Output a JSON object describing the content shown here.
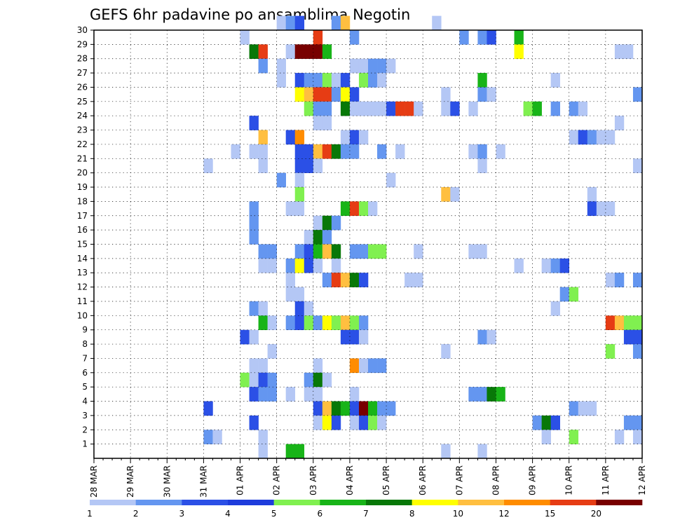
{
  "chart_data": {
    "type": "heatmap",
    "title": "GEFS 6hr padavine po ansamblima Negotin",
    "xlabel": "",
    "ylabel": "",
    "grid": true,
    "x_tick_labels": [
      "28 MAR",
      "29 MAR",
      "30 MAR",
      "31 MAR",
      "01 APR",
      "02 APR",
      "03 APR",
      "04 APR",
      "05 APR",
      "06 APR",
      "07 APR",
      "08 APR",
      "09 APR",
      "10 APR",
      "11 APR",
      "12 APR"
    ],
    "y_tick_labels": [
      "1",
      "2",
      "3",
      "4",
      "5",
      "6",
      "7",
      "8",
      "9",
      "10",
      "11",
      "12",
      "13",
      "14",
      "15",
      "16",
      "17",
      "18",
      "19",
      "20",
      "21",
      "22",
      "23",
      "24",
      "25",
      "26",
      "27",
      "28",
      "29",
      "30"
    ],
    "x_unit": "6-hour step from 28 MAR 00Z",
    "x_range": [
      0,
      60
    ],
    "y_range": [
      0,
      30
    ],
    "legend": {
      "placement": "bottom",
      "levels": [
        "1",
        "2",
        "3",
        "4",
        "5",
        "6",
        "7",
        "8",
        "10",
        "12",
        "15",
        "20"
      ],
      "colors": [
        "#b4c7f5",
        "#6496f0",
        "#2b50e6",
        "#1e3cdc",
        "#80f050",
        "#18b418",
        "#087808",
        "#ffff00",
        "#ffbf40",
        "#ff8c00",
        "#e63c14",
        "#780000"
      ]
    },
    "cells": [
      [
        20,
        30,
        1
      ],
      [
        21,
        30,
        2
      ],
      [
        22,
        30,
        3
      ],
      [
        26,
        30,
        2
      ],
      [
        27,
        30,
        10
      ],
      [
        37,
        30,
        1
      ],
      [
        16,
        29,
        1
      ],
      [
        24,
        29,
        15
      ],
      [
        28,
        29,
        2
      ],
      [
        40,
        29,
        2
      ],
      [
        42,
        29,
        2
      ],
      [
        43,
        29,
        3
      ],
      [
        46,
        29,
        6
      ],
      [
        17,
        28,
        7
      ],
      [
        18,
        28,
        15
      ],
      [
        21,
        28,
        1
      ],
      [
        22,
        28,
        20
      ],
      [
        23,
        28,
        20
      ],
      [
        24,
        28,
        20
      ],
      [
        25,
        28,
        6
      ],
      [
        46,
        28,
        8
      ],
      [
        57,
        28,
        1
      ],
      [
        58,
        28,
        1
      ],
      [
        18,
        27,
        2
      ],
      [
        20,
        27,
        1
      ],
      [
        28,
        27,
        1
      ],
      [
        29,
        27,
        1
      ],
      [
        30,
        27,
        2
      ],
      [
        31,
        27,
        2
      ],
      [
        32,
        27,
        1
      ],
      [
        20,
        26,
        1
      ],
      [
        22,
        26,
        3
      ],
      [
        23,
        26,
        2
      ],
      [
        24,
        26,
        2
      ],
      [
        25,
        26,
        5
      ],
      [
        26,
        26,
        1
      ],
      [
        27,
        26,
        3
      ],
      [
        29,
        26,
        5
      ],
      [
        30,
        26,
        2
      ],
      [
        31,
        26,
        1
      ],
      [
        42,
        26,
        6
      ],
      [
        50,
        26,
        1
      ],
      [
        22,
        25,
        8
      ],
      [
        23,
        25,
        10
      ],
      [
        24,
        25,
        15
      ],
      [
        25,
        25,
        15
      ],
      [
        26,
        25,
        2
      ],
      [
        27,
        25,
        8
      ],
      [
        28,
        25,
        3
      ],
      [
        38,
        25,
        1
      ],
      [
        42,
        25,
        2
      ],
      [
        43,
        25,
        1
      ],
      [
        59,
        25,
        2
      ],
      [
        23,
        24,
        5
      ],
      [
        24,
        24,
        2
      ],
      [
        25,
        24,
        2
      ],
      [
        27,
        24,
        7
      ],
      [
        28,
        24,
        1
      ],
      [
        29,
        24,
        1
      ],
      [
        30,
        24,
        1
      ],
      [
        31,
        24,
        1
      ],
      [
        32,
        24,
        3
      ],
      [
        33,
        24,
        15
      ],
      [
        34,
        24,
        15
      ],
      [
        35,
        24,
        1
      ],
      [
        38,
        24,
        1
      ],
      [
        39,
        24,
        3
      ],
      [
        41,
        24,
        1
      ],
      [
        47,
        24,
        5
      ],
      [
        48,
        24,
        6
      ],
      [
        50,
        24,
        2
      ],
      [
        52,
        24,
        2
      ],
      [
        53,
        24,
        1
      ],
      [
        17,
        23,
        3
      ],
      [
        24,
        23,
        1
      ],
      [
        25,
        23,
        1
      ],
      [
        57,
        23,
        1
      ],
      [
        18,
        22,
        10
      ],
      [
        21,
        22,
        3
      ],
      [
        22,
        22,
        12
      ],
      [
        27,
        22,
        1
      ],
      [
        28,
        22,
        3
      ],
      [
        29,
        22,
        1
      ],
      [
        52,
        22,
        1
      ],
      [
        53,
        22,
        3
      ],
      [
        54,
        22,
        2
      ],
      [
        55,
        22,
        1
      ],
      [
        56,
        22,
        1
      ],
      [
        15,
        21,
        1
      ],
      [
        17,
        21,
        1
      ],
      [
        18,
        21,
        1
      ],
      [
        22,
        21,
        3
      ],
      [
        23,
        21,
        3
      ],
      [
        24,
        21,
        10
      ],
      [
        25,
        21,
        15
      ],
      [
        26,
        21,
        7
      ],
      [
        27,
        21,
        2
      ],
      [
        28,
        21,
        2
      ],
      [
        31,
        21,
        2
      ],
      [
        33,
        21,
        1
      ],
      [
        41,
        21,
        1
      ],
      [
        42,
        21,
        2
      ],
      [
        44,
        21,
        1
      ],
      [
        12,
        20,
        1
      ],
      [
        18,
        20,
        1
      ],
      [
        22,
        20,
        3
      ],
      [
        23,
        20,
        3
      ],
      [
        24,
        20,
        1
      ],
      [
        42,
        20,
        1
      ],
      [
        59,
        20,
        1
      ],
      [
        20,
        19,
        2
      ],
      [
        22,
        19,
        1
      ],
      [
        32,
        19,
        1
      ],
      [
        22,
        18,
        5
      ],
      [
        38,
        18,
        10
      ],
      [
        39,
        18,
        1
      ],
      [
        54,
        18,
        1
      ],
      [
        17,
        17,
        2
      ],
      [
        21,
        17,
        1
      ],
      [
        22,
        17,
        1
      ],
      [
        27,
        17,
        6
      ],
      [
        28,
        17,
        15
      ],
      [
        29,
        17,
        5
      ],
      [
        30,
        17,
        1
      ],
      [
        54,
        17,
        3
      ],
      [
        55,
        17,
        1
      ],
      [
        56,
        17,
        1
      ],
      [
        17,
        16,
        2
      ],
      [
        24,
        16,
        1
      ],
      [
        25,
        16,
        7
      ],
      [
        26,
        16,
        2
      ],
      [
        17,
        15,
        2
      ],
      [
        23,
        15,
        1
      ],
      [
        24,
        15,
        7
      ],
      [
        25,
        15,
        2
      ],
      [
        18,
        14,
        2
      ],
      [
        19,
        14,
        2
      ],
      [
        22,
        14,
        2
      ],
      [
        23,
        14,
        3
      ],
      [
        24,
        14,
        6
      ],
      [
        25,
        14,
        10
      ],
      [
        26,
        14,
        7
      ],
      [
        28,
        14,
        2
      ],
      [
        29,
        14,
        2
      ],
      [
        30,
        14,
        5
      ],
      [
        31,
        14,
        5
      ],
      [
        35,
        14,
        1
      ],
      [
        41,
        14,
        1
      ],
      [
        42,
        14,
        1
      ],
      [
        18,
        13,
        1
      ],
      [
        19,
        13,
        1
      ],
      [
        21,
        13,
        2
      ],
      [
        22,
        13,
        8
      ],
      [
        23,
        13,
        3
      ],
      [
        24,
        13,
        1
      ],
      [
        26,
        13,
        1
      ],
      [
        46,
        13,
        1
      ],
      [
        49,
        13,
        1
      ],
      [
        50,
        13,
        2
      ],
      [
        51,
        13,
        3
      ],
      [
        21,
        12,
        1
      ],
      [
        25,
        12,
        2
      ],
      [
        26,
        12,
        15
      ],
      [
        27,
        12,
        10
      ],
      [
        28,
        12,
        7
      ],
      [
        29,
        12,
        3
      ],
      [
        34,
        12,
        1
      ],
      [
        35,
        12,
        1
      ],
      [
        56,
        12,
        1
      ],
      [
        57,
        12,
        2
      ],
      [
        59,
        12,
        2
      ],
      [
        21,
        11,
        1
      ],
      [
        22,
        11,
        1
      ],
      [
        51,
        11,
        2
      ],
      [
        52,
        11,
        5
      ],
      [
        17,
        10,
        2
      ],
      [
        18,
        10,
        1
      ],
      [
        22,
        10,
        3
      ],
      [
        23,
        10,
        1
      ],
      [
        50,
        10,
        1
      ],
      [
        18,
        9,
        6
      ],
      [
        19,
        9,
        1
      ],
      [
        21,
        9,
        2
      ],
      [
        22,
        9,
        3
      ],
      [
        23,
        9,
        5
      ],
      [
        24,
        9,
        2
      ],
      [
        25,
        9,
        8
      ],
      [
        26,
        9,
        5
      ],
      [
        27,
        9,
        10
      ],
      [
        28,
        9,
        5
      ],
      [
        29,
        9,
        2
      ],
      [
        56,
        9,
        15
      ],
      [
        57,
        9,
        10
      ],
      [
        58,
        9,
        5
      ],
      [
        59,
        9,
        5
      ],
      [
        16,
        8,
        3
      ],
      [
        17,
        8,
        1
      ],
      [
        27,
        8,
        3
      ],
      [
        28,
        8,
        3
      ],
      [
        29,
        8,
        1
      ],
      [
        42,
        8,
        2
      ],
      [
        43,
        8,
        1
      ],
      [
        58,
        8,
        3
      ],
      [
        59,
        8,
        3
      ],
      [
        19,
        7,
        1
      ],
      [
        38,
        7,
        1
      ],
      [
        56,
        7,
        5
      ],
      [
        59,
        7,
        2
      ],
      [
        17,
        6,
        1
      ],
      [
        18,
        6,
        1
      ],
      [
        24,
        6,
        1
      ],
      [
        28,
        6,
        12
      ],
      [
        29,
        6,
        1
      ],
      [
        30,
        6,
        2
      ],
      [
        31,
        6,
        2
      ],
      [
        16,
        5,
        5
      ],
      [
        17,
        5,
        1
      ],
      [
        18,
        5,
        3
      ],
      [
        19,
        5,
        2
      ],
      [
        23,
        5,
        2
      ],
      [
        24,
        5,
        7
      ],
      [
        25,
        5,
        1
      ],
      [
        17,
        4,
        3
      ],
      [
        18,
        4,
        2
      ],
      [
        19,
        4,
        2
      ],
      [
        21,
        4,
        1
      ],
      [
        23,
        4,
        1
      ],
      [
        24,
        4,
        1
      ],
      [
        28,
        4,
        1
      ],
      [
        41,
        4,
        2
      ],
      [
        42,
        4,
        2
      ],
      [
        43,
        4,
        7
      ],
      [
        44,
        4,
        6
      ],
      [
        12,
        3,
        3
      ],
      [
        24,
        3,
        3
      ],
      [
        25,
        3,
        10
      ],
      [
        26,
        3,
        7
      ],
      [
        27,
        3,
        6
      ],
      [
        28,
        3,
        3
      ],
      [
        29,
        3,
        20
      ],
      [
        30,
        3,
        6
      ],
      [
        31,
        3,
        2
      ],
      [
        32,
        3,
        2
      ],
      [
        52,
        3,
        2
      ],
      [
        53,
        3,
        1
      ],
      [
        54,
        3,
        1
      ],
      [
        17,
        2,
        3
      ],
      [
        24,
        2,
        1
      ],
      [
        25,
        2,
        8
      ],
      [
        26,
        2,
        3
      ],
      [
        28,
        2,
        1
      ],
      [
        29,
        2,
        3
      ],
      [
        30,
        2,
        5
      ],
      [
        31,
        2,
        1
      ],
      [
        48,
        2,
        2
      ],
      [
        49,
        2,
        7
      ],
      [
        50,
        2,
        3
      ],
      [
        58,
        2,
        2
      ],
      [
        59,
        2,
        2
      ],
      [
        12,
        1,
        2
      ],
      [
        13,
        1,
        1
      ],
      [
        18,
        1,
        1
      ],
      [
        49,
        1,
        1
      ],
      [
        52,
        1,
        5
      ],
      [
        57,
        1,
        1
      ],
      [
        59,
        1,
        1
      ],
      [
        18,
        0,
        1
      ],
      [
        21,
        0,
        6
      ],
      [
        22,
        0,
        6
      ],
      [
        38,
        0,
        1
      ],
      [
        42,
        0,
        1
      ]
    ]
  }
}
